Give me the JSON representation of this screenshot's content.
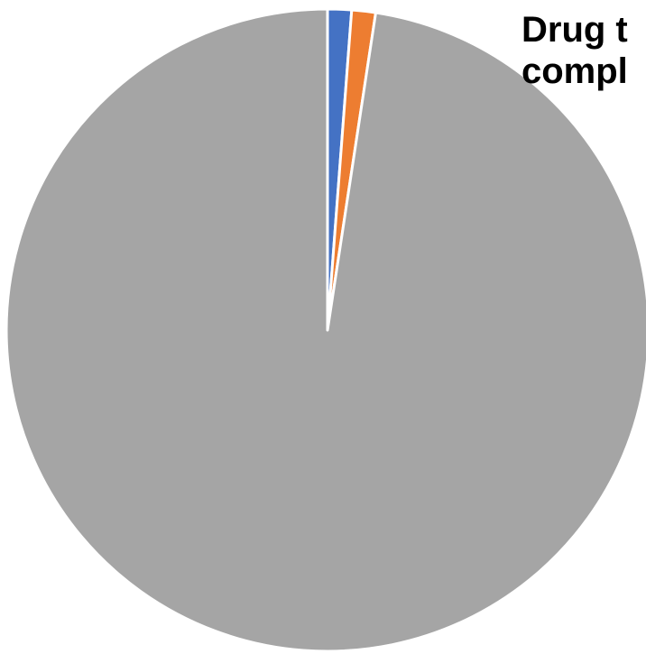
{
  "chart_data": {
    "type": "pie",
    "title_lines": [
      "Drug t",
      "compl"
    ],
    "categories": [
      "",
      "",
      ""
    ],
    "values": [
      1.2,
      1.2,
      97.6
    ],
    "colors": [
      "#4472C4",
      "#ED7D31",
      "#A5A5A5"
    ],
    "slice_border_color": "#FFFFFF",
    "start_angle_deg": 0,
    "direction": "clockwise"
  }
}
